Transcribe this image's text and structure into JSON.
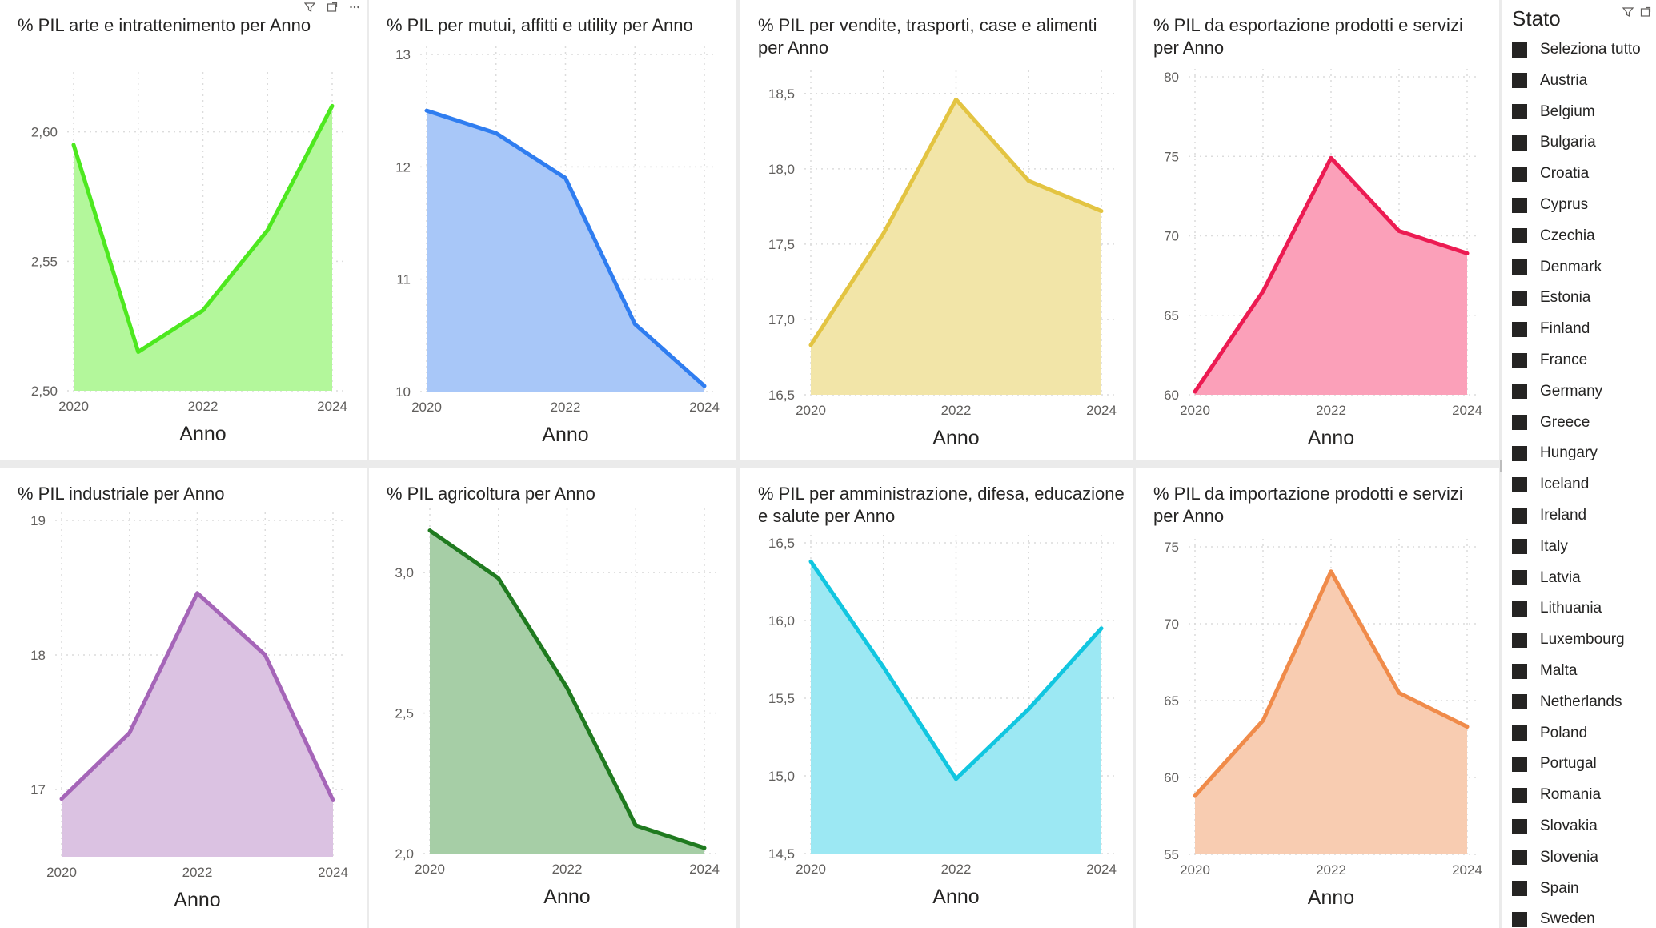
{
  "charts": [
    {
      "title_lines": [
        "% PIL arte e intrattenimento per Anno"
      ],
      "xlabel": "Anno",
      "color": "#4de81f",
      "fill": "#b3f79b",
      "header_icons": true,
      "chart_data": {
        "type": "area",
        "x": [
          2020,
          2021,
          2022,
          2023,
          2024
        ],
        "values": [
          2.595,
          2.515,
          2.531,
          2.562,
          2.61
        ],
        "ylim": [
          2.5,
          2.62
        ],
        "yticks": [
          2.5,
          2.55,
          2.6
        ],
        "ytick_labels": [
          "2,50",
          "2,55",
          "2,60"
        ],
        "xticks": [
          2020,
          2022,
          2024
        ],
        "xtick_labels": [
          "2020",
          "2022",
          "2024"
        ],
        "xlabel": "Anno"
      }
    },
    {
      "title_lines": [
        "% PIL per mutui, affitti e utility per Anno"
      ],
      "xlabel": "Anno",
      "color": "#2f7df0",
      "fill": "#a8c7f8",
      "chart_data": {
        "type": "area",
        "x": [
          2020,
          2021,
          2022,
          2023,
          2024
        ],
        "values": [
          12.5,
          12.3,
          11.9,
          10.6,
          10.05
        ],
        "ylim": [
          10,
          13
        ],
        "yticks": [
          10,
          11,
          12,
          13
        ],
        "ytick_labels": [
          "10",
          "11",
          "12",
          "13"
        ],
        "xticks": [
          2020,
          2022,
          2024
        ],
        "xtick_labels": [
          "2020",
          "2022",
          "2024"
        ],
        "xlabel": "Anno"
      }
    },
    {
      "title_lines": [
        "% PIL per vendite, trasporti, case e alimenti",
        "per Anno"
      ],
      "xlabel": "Anno",
      "color": "#e3c442",
      "fill": "#f2e5a8",
      "chart_data": {
        "type": "area",
        "x": [
          2020,
          2021,
          2022,
          2023,
          2024
        ],
        "values": [
          16.83,
          17.57,
          18.46,
          17.92,
          17.72
        ],
        "ylim": [
          16.5,
          18.6
        ],
        "yticks": [
          16.5,
          17.0,
          17.5,
          18.0,
          18.5
        ],
        "ytick_labels": [
          "16,5",
          "17,0",
          "17,5",
          "18,0",
          "18,5"
        ],
        "xticks": [
          2020,
          2022,
          2024
        ],
        "xtick_labels": [
          "2020",
          "2022",
          "2024"
        ],
        "xlabel": "Anno"
      }
    },
    {
      "title_lines": [
        "% PIL da esportazione prodotti e servizi",
        "per Anno"
      ],
      "xlabel": "Anno",
      "color": "#ec1b52",
      "fill": "#fba0b9",
      "chart_data": {
        "type": "area",
        "x": [
          2020,
          2021,
          2022,
          2023,
          2024
        ],
        "values": [
          60.2,
          66.5,
          74.9,
          70.3,
          68.9
        ],
        "ylim": [
          60,
          80
        ],
        "yticks": [
          60,
          65,
          70,
          75,
          80
        ],
        "ytick_labels": [
          "60",
          "65",
          "70",
          "75",
          "80"
        ],
        "xticks": [
          2020,
          2022,
          2024
        ],
        "xtick_labels": [
          "2020",
          "2022",
          "2024"
        ],
        "xlabel": "Anno"
      }
    },
    {
      "title_lines": [
        "% PIL industriale per Anno"
      ],
      "xlabel": "Anno",
      "color": "#a565b8",
      "fill": "#dbc2e2",
      "chart_data": {
        "type": "area",
        "x": [
          2020,
          2021,
          2022,
          2023,
          2024
        ],
        "values": [
          16.93,
          17.42,
          18.46,
          18.0,
          16.92
        ],
        "ylim": [
          16.5,
          19
        ],
        "yticks": [
          17,
          18,
          19
        ],
        "ytick_labels": [
          "17",
          "18",
          "19"
        ],
        "xticks": [
          2020,
          2022,
          2024
        ],
        "xtick_labels": [
          "2020",
          "2022",
          "2024"
        ],
        "xlabel": "Anno"
      }
    },
    {
      "title_lines": [
        "% PIL agricoltura per Anno"
      ],
      "xlabel": "Anno",
      "color": "#1f7a1f",
      "fill": "#a6cea6",
      "chart_data": {
        "type": "area",
        "x": [
          2020,
          2021,
          2022,
          2023,
          2024
        ],
        "values": [
          3.15,
          2.98,
          2.59,
          2.1,
          2.02
        ],
        "ylim": [
          2.0,
          3.2
        ],
        "yticks": [
          2.0,
          2.5,
          3.0
        ],
        "ytick_labels": [
          "2,0",
          "2,5",
          "3,0"
        ],
        "xticks": [
          2020,
          2022,
          2024
        ],
        "xtick_labels": [
          "2020",
          "2022",
          "2024"
        ],
        "xlabel": "Anno"
      }
    },
    {
      "title_lines": [
        "% PIL per amministrazione, difesa, educazione",
        "e salute per Anno"
      ],
      "xlabel": "Anno",
      "color": "#11c6e0",
      "fill": "#9ce8f3",
      "chart_data": {
        "type": "area",
        "x": [
          2020,
          2021,
          2022,
          2023,
          2024
        ],
        "values": [
          16.38,
          15.7,
          14.98,
          15.43,
          15.95
        ],
        "ylim": [
          14.5,
          16.5
        ],
        "yticks": [
          14.5,
          15.0,
          15.5,
          16.0,
          16.5
        ],
        "ytick_labels": [
          "14,5",
          "15,0",
          "15,5",
          "16,0",
          "16,5"
        ],
        "xticks": [
          2020,
          2022,
          2024
        ],
        "xtick_labels": [
          "2020",
          "2022",
          "2024"
        ],
        "xlabel": "Anno"
      }
    },
    {
      "title_lines": [
        "% PIL da importazione prodotti e servizi",
        "per Anno"
      ],
      "xlabel": "Anno",
      "color": "#f08b4a",
      "fill": "#f8ccb1",
      "chart_data": {
        "type": "area",
        "x": [
          2020,
          2021,
          2022,
          2023,
          2024
        ],
        "values": [
          58.8,
          63.7,
          73.4,
          65.5,
          63.3
        ],
        "ylim": [
          55,
          75
        ],
        "yticks": [
          55,
          60,
          65,
          70,
          75
        ],
        "ytick_labels": [
          "55",
          "60",
          "65",
          "70",
          "75"
        ],
        "xticks": [
          2020,
          2022,
          2024
        ],
        "xtick_labels": [
          "2020",
          "2022",
          "2024"
        ],
        "xlabel": "Anno"
      }
    }
  ],
  "header_icons": [
    "filter-icon",
    "focus-mode-icon",
    "more-options-icon"
  ],
  "slicer": {
    "title": "Stato",
    "items": [
      "Seleziona tutto",
      "Austria",
      "Belgium",
      "Bulgaria",
      "Croatia",
      "Cyprus",
      "Czechia",
      "Denmark",
      "Estonia",
      "Finland",
      "France",
      "Germany",
      "Greece",
      "Hungary",
      "Iceland",
      "Ireland",
      "Italy",
      "Latvia",
      "Lithuania",
      "Luxembourg",
      "Malta",
      "Netherlands",
      "Poland",
      "Portugal",
      "Romania",
      "Slovakia",
      "Slovenia",
      "Spain",
      "Sweden"
    ]
  }
}
